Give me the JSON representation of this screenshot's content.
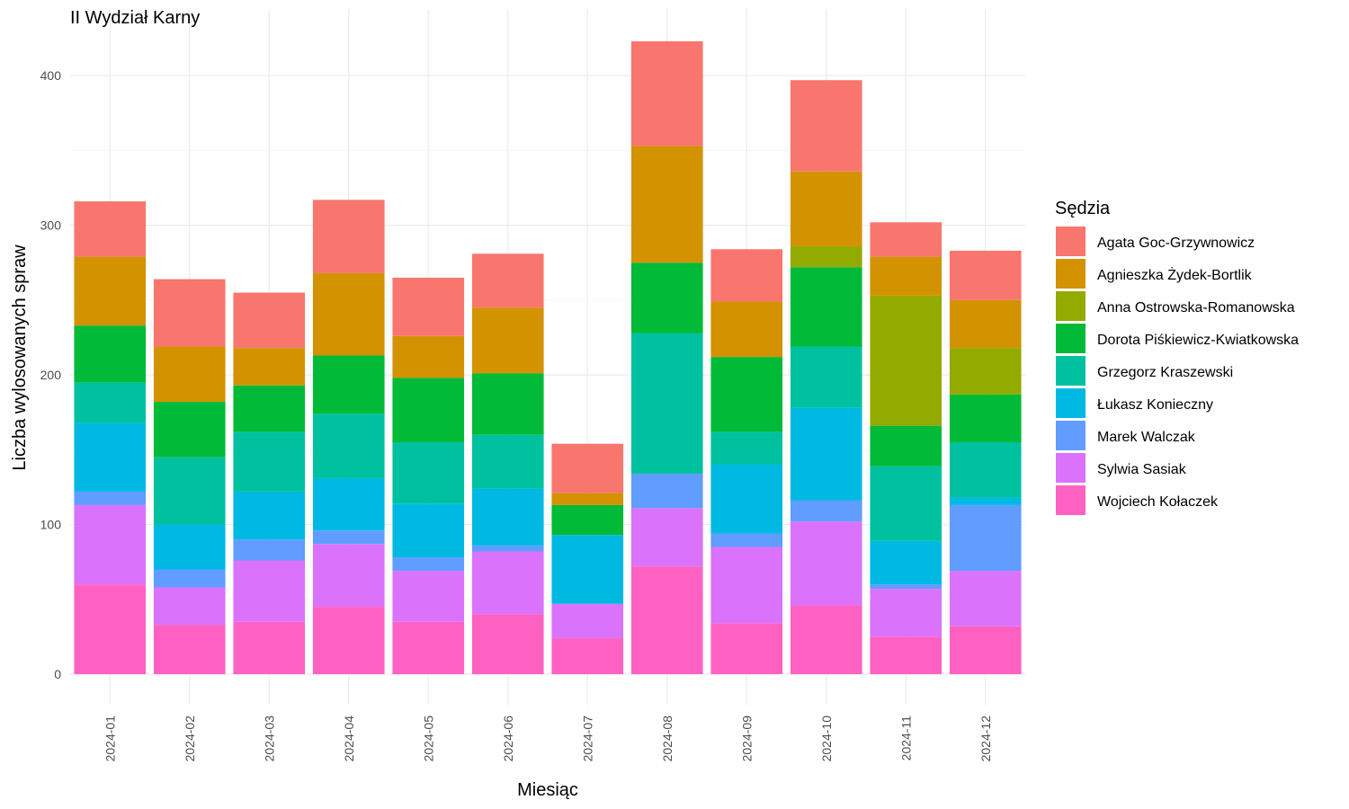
{
  "chart_data": {
    "type": "bar",
    "stacked": true,
    "title": "II Wydział Karny",
    "xlabel": "Miesiąc",
    "ylabel": "Liczba wylosowanych spraw",
    "ylim": [
      0,
      430
    ],
    "yticks": [
      0,
      100,
      200,
      300,
      400
    ],
    "grid": true,
    "legend": {
      "title": "Sędzia",
      "placement": "right"
    },
    "categories": [
      "2024-01",
      "2024-02",
      "2024-03",
      "2024-04",
      "2024-05",
      "2024-06",
      "2024-07",
      "2024-08",
      "2024-09",
      "2024-10",
      "2024-11",
      "2024-12"
    ],
    "series": [
      {
        "name": "Agata Goc-Grzywnowicz",
        "color": "#F8766D",
        "values": [
          37,
          45,
          37,
          49,
          39,
          36,
          33,
          70,
          35,
          61,
          23,
          33
        ]
      },
      {
        "name": "Agnieszka Żydek-Bortlik",
        "color": "#D39200",
        "values": [
          46,
          37,
          25,
          55,
          28,
          44,
          8,
          78,
          37,
          50,
          26,
          32
        ]
      },
      {
        "name": "Anna Ostrowska-Romanowska",
        "color": "#93AA00",
        "values": [
          0,
          0,
          0,
          0,
          0,
          0,
          0,
          0,
          0,
          14,
          87,
          31
        ]
      },
      {
        "name": "Dorota Piśkiewicz-Kwiatkowska",
        "color": "#00BA38",
        "values": [
          38,
          37,
          31,
          39,
          43,
          41,
          20,
          47,
          50,
          53,
          27,
          32
        ]
      },
      {
        "name": "Grzegorz Kraszewski",
        "color": "#00C19F",
        "values": [
          27,
          45,
          40,
          43,
          41,
          36,
          0,
          94,
          22,
          41,
          50,
          37
        ]
      },
      {
        "name": "Łukasz Konieczny",
        "color": "#00B9E3",
        "values": [
          46,
          30,
          32,
          35,
          36,
          38,
          46,
          0,
          46,
          62,
          29,
          5
        ]
      },
      {
        "name": "Marek Walczak",
        "color": "#619CFF",
        "values": [
          9,
          12,
          14,
          9,
          9,
          4,
          0,
          23,
          9,
          14,
          3,
          44
        ]
      },
      {
        "name": "Sylwia Sasiak",
        "color": "#DB72FB",
        "values": [
          53,
          25,
          41,
          42,
          34,
          42,
          23,
          39,
          51,
          56,
          32,
          37
        ]
      },
      {
        "name": "Wojciech Kołaczek",
        "color": "#FF61C3",
        "values": [
          60,
          33,
          35,
          45,
          35,
          40,
          24,
          72,
          34,
          46,
          25,
          32
        ]
      }
    ]
  }
}
